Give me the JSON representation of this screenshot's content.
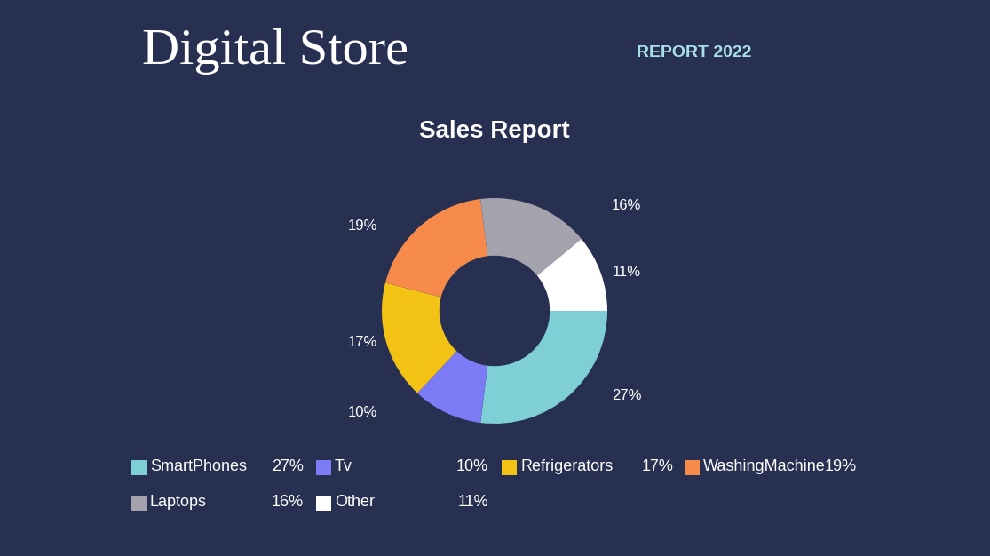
{
  "page": {
    "title": "Digital Store",
    "subtitle": "REPORT 2022"
  },
  "chart_data": {
    "type": "donut",
    "title": "Sales Report",
    "categories": [
      "SmartPhones",
      "Tv",
      "Refrigerators",
      "WashingMachine",
      "Laptops",
      "Other"
    ],
    "values": [
      27,
      10,
      17,
      19,
      16,
      11
    ],
    "value_labels": [
      "27%",
      "10%",
      "17%",
      "19%",
      "16%",
      "11%"
    ],
    "colors": [
      "#7ecfd6",
      "#7b7bf5",
      "#f2c314",
      "#f58a4b",
      "#a4a2ad",
      "#ffffff"
    ],
    "data_labels": true,
    "legend": "bottom"
  }
}
